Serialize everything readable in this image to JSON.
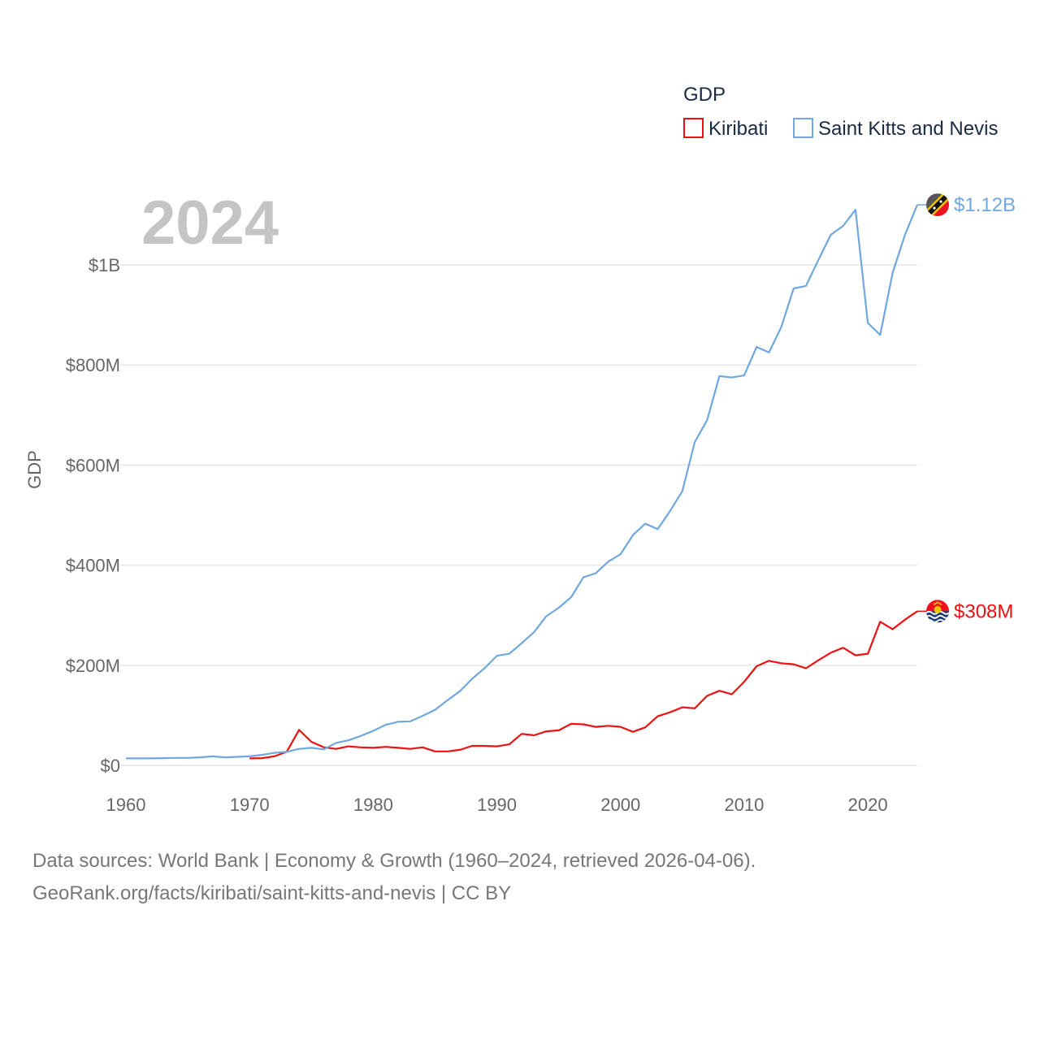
{
  "chart_data": {
    "type": "line",
    "title": "GDP",
    "year_label": "2024",
    "ylabel": "GDP",
    "xlabel": "",
    "xlim": [
      1960,
      2024
    ],
    "ylim": [
      0,
      1000000000
    ],
    "y_ticks": [
      {
        "value": 0,
        "label": "$0"
      },
      {
        "value": 200000000,
        "label": "$200M"
      },
      {
        "value": 400000000,
        "label": "$400M"
      },
      {
        "value": 600000000,
        "label": "$600M"
      },
      {
        "value": 800000000,
        "label": "$800M"
      },
      {
        "value": 1000000000,
        "label": "$1B"
      }
    ],
    "x_ticks": [
      {
        "value": 1960,
        "label": "1960"
      },
      {
        "value": 1970,
        "label": "1970"
      },
      {
        "value": 1980,
        "label": "1980"
      },
      {
        "value": 1990,
        "label": "1990"
      },
      {
        "value": 2000,
        "label": "2000"
      },
      {
        "value": 2010,
        "label": "2010"
      },
      {
        "value": 2020,
        "label": "2020"
      }
    ],
    "legend_title": "GDP",
    "series": [
      {
        "name": "Kiribati",
        "color": "#ee1111",
        "end_label": "$308M",
        "x": [
          1970,
          1971,
          1972,
          1973,
          1974,
          1975,
          1976,
          1977,
          1978,
          1979,
          1980,
          1981,
          1982,
          1983,
          1984,
          1985,
          1986,
          1987,
          1988,
          1989,
          1990,
          1991,
          1992,
          1993,
          1994,
          1995,
          1996,
          1997,
          1998,
          1999,
          2000,
          2001,
          2002,
          2003,
          2004,
          2005,
          2006,
          2007,
          2008,
          2009,
          2010,
          2011,
          2012,
          2013,
          2014,
          2015,
          2016,
          2017,
          2018,
          2019,
          2020,
          2021,
          2022,
          2023,
          2024
        ],
        "values": [
          14000000,
          14500000,
          18000000,
          27000000,
          71000000,
          47000000,
          36000000,
          33000000,
          38000000,
          36000000,
          35000000,
          37000000,
          35000000,
          33000000,
          36000000,
          28000000,
          28000000,
          31000000,
          39000000,
          39000000,
          38000000,
          42000000,
          63000000,
          60000000,
          68000000,
          70000000,
          83000000,
          82000000,
          77000000,
          79000000,
          77000000,
          67000000,
          76000000,
          98000000,
          106000000,
          116000000,
          114000000,
          139000000,
          149000000,
          142000000,
          167000000,
          198000000,
          209000000,
          204000000,
          202000000,
          194000000,
          210000000,
          225000000,
          235000000,
          220000000,
          223000000,
          287000000,
          272000000,
          291000000,
          308000000
        ]
      },
      {
        "name": "Saint Kitts and Nevis",
        "color": "#6fa8e0",
        "end_label": "$1.12B",
        "x": [
          1960,
          1961,
          1962,
          1963,
          1964,
          1965,
          1966,
          1967,
          1968,
          1969,
          1970,
          1971,
          1972,
          1973,
          1974,
          1975,
          1976,
          1977,
          1978,
          1979,
          1980,
          1981,
          1982,
          1983,
          1984,
          1985,
          1986,
          1987,
          1988,
          1989,
          1990,
          1991,
          1992,
          1993,
          1994,
          1995,
          1996,
          1997,
          1998,
          1999,
          2000,
          2001,
          2002,
          2003,
          2004,
          2005,
          2006,
          2007,
          2008,
          2009,
          2010,
          2011,
          2012,
          2013,
          2014,
          2015,
          2016,
          2017,
          2018,
          2019,
          2020,
          2021,
          2022,
          2023,
          2024
        ],
        "values": [
          14000000,
          14000000,
          14000000,
          14500000,
          15000000,
          15000000,
          16000000,
          18000000,
          16000000,
          17000000,
          18000000,
          21000000,
          25000000,
          27000000,
          33000000,
          35000000,
          32000000,
          45000000,
          50000000,
          59000000,
          69000000,
          81000000,
          87000000,
          88000000,
          99000000,
          111000000,
          130000000,
          148000000,
          173000000,
          194000000,
          219000000,
          223000000,
          244000000,
          266000000,
          298000000,
          315000000,
          336000000,
          376000000,
          384000000,
          407000000,
          422000000,
          460000000,
          483000000,
          472000000,
          508000000,
          548000000,
          646000000,
          690000000,
          778000000,
          775000000,
          779000000,
          836000000,
          825000000,
          876000000,
          953000000,
          958000000,
          1010000000,
          1060000000,
          1078000000,
          1110000000,
          884000000,
          860000000,
          984000000,
          1060000000,
          1120000000
        ]
      }
    ],
    "icons": [
      "saint-kitts-flag-icon",
      "kiribati-flag-icon"
    ]
  },
  "footer": {
    "line1": "Data sources: World Bank | Economy & Growth (1960–2024, retrieved 2026-04-06).",
    "line2": "GeoRank.org/facts/kiribati/saint-kitts-and-nevis | CC BY"
  }
}
